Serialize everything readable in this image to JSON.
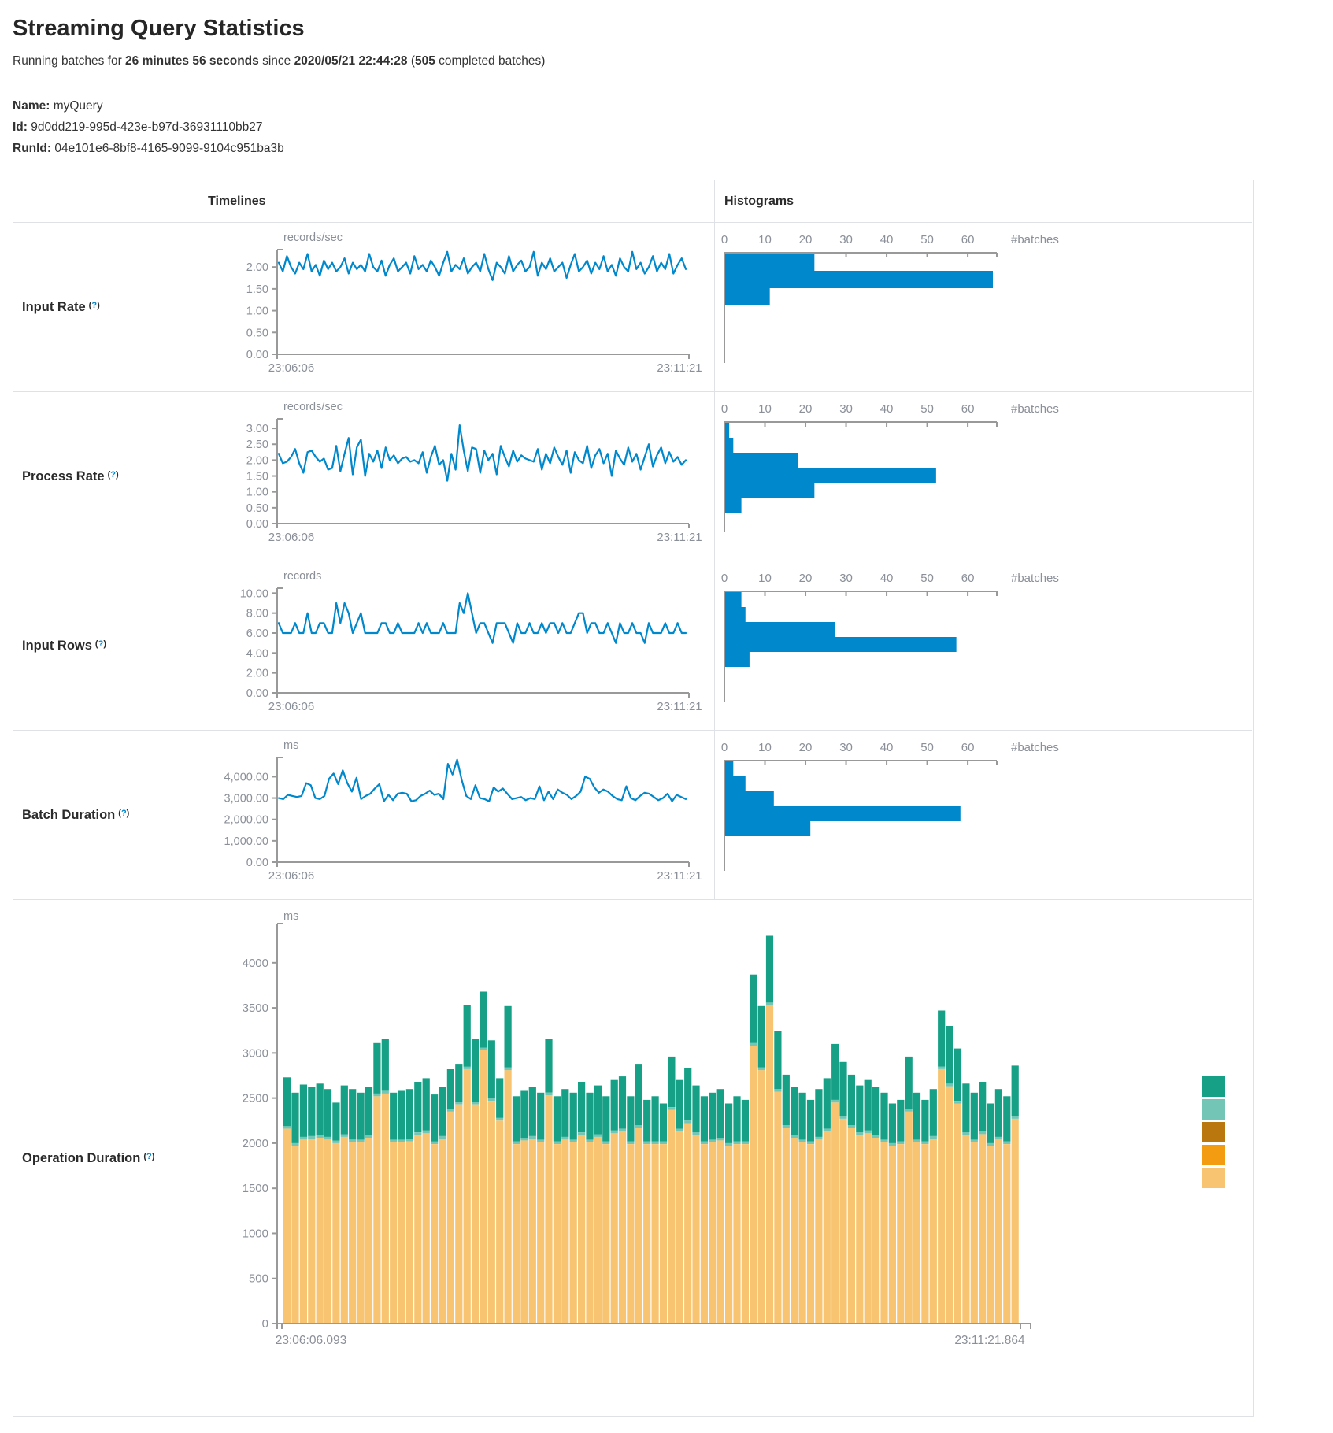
{
  "page": {
    "title": "Streaming Query Statistics",
    "subtitle_prefix": "Running batches for ",
    "duration": "26 minutes 56 seconds",
    "since_word": " since ",
    "start_time": "2020/05/21 22:44:28",
    "batches_open": " (",
    "completed_batches": "505",
    "batches_suffix": " completed batches)",
    "name_label": "Name:",
    "name_value": "myQuery",
    "id_label": "Id:",
    "id_value": "9d0dd219-995d-423e-b97d-36931110bb27",
    "runid_label": "RunId:",
    "runid_value": "04e101e6-8bf8-4165-9099-9104c951ba3b"
  },
  "misc": {
    "paren_open": "(",
    "help_q": "?",
    "paren_close": ")"
  },
  "table": {
    "col_timelines": "Timelines",
    "col_histograms": "Histograms"
  },
  "colors": {
    "blue": "#0088cc",
    "axis": "#999999",
    "chart_text": "#8a8f98",
    "border": "#dee2e6",
    "teal": "#16a085",
    "light_teal": "#73c6b6",
    "bronze": "#b9770e",
    "orange": "#f39c12",
    "tan": "#f8c471"
  },
  "chart_data": {
    "rows": [
      {
        "label": "Input Rate",
        "timeline": {
          "type": "line",
          "unit": "records/sec",
          "ymax": 2.4,
          "y_ticks": [
            {
              "v": 2,
              "label": "2.00"
            },
            {
              "v": 1.5,
              "label": "1.50"
            },
            {
              "v": 1,
              "label": "1.00"
            },
            {
              "v": 0.5,
              "label": "0.50"
            },
            {
              "v": 0,
              "label": "0.00"
            }
          ],
          "x_start": "23:06:06",
          "x_end": "23:11:21",
          "values": [
            2.1,
            1.9,
            2.25,
            2.0,
            1.85,
            2.1,
            1.95,
            2.3,
            1.9,
            2.05,
            1.8,
            2.15,
            1.95,
            2.1,
            1.9,
            2.0,
            2.2,
            1.85,
            2.1,
            1.95,
            2.05,
            1.9,
            2.3,
            2.0,
            1.9,
            2.15,
            1.8,
            2.05,
            2.2,
            1.9,
            2.0,
            2.1,
            1.85,
            2.25,
            1.95,
            2.05,
            1.9,
            2.15,
            2.0,
            1.8,
            2.1,
            2.35,
            1.9,
            2.05,
            1.95,
            2.2,
            1.85,
            2.0,
            2.1,
            1.9,
            2.3,
            1.95,
            1.7,
            2.1,
            2.0,
            1.85,
            2.25,
            1.9,
            2.05,
            2.15,
            1.9,
            2.0,
            2.35,
            1.8,
            2.1,
            1.95,
            2.2,
            1.9,
            2.0,
            2.1,
            1.75,
            2.05,
            2.3,
            1.9,
            2.0,
            2.15,
            1.85,
            2.1,
            1.95,
            2.25,
            1.9,
            2.05,
            1.8,
            2.2,
            2.0,
            1.9,
            2.35,
            1.95,
            2.1,
            1.85,
            2.0,
            2.25,
            1.9,
            2.1,
            1.95,
            2.3,
            1.85,
            2.05,
            2.2,
            1.95
          ]
        },
        "histogram": {
          "type": "bar",
          "axis_ticks": [
            0,
            10,
            20,
            30,
            40,
            50,
            60
          ],
          "max": 66,
          "axis_label": "#batches",
          "values": [
            22,
            66,
            11
          ]
        }
      },
      {
        "label": "Process Rate",
        "timeline": {
          "type": "line",
          "unit": "records/sec",
          "ymax": 3.3,
          "y_ticks": [
            {
              "v": 3,
              "label": "3.00"
            },
            {
              "v": 2.5,
              "label": "2.50"
            },
            {
              "v": 2,
              "label": "2.00"
            },
            {
              "v": 1.5,
              "label": "1.50"
            },
            {
              "v": 1,
              "label": "1.00"
            },
            {
              "v": 0.5,
              "label": "0.50"
            },
            {
              "v": 0,
              "label": "0.00"
            }
          ],
          "x_start": "23:06:06",
          "x_end": "23:11:21",
          "values": [
            2.2,
            1.9,
            1.95,
            2.1,
            2.35,
            1.9,
            1.6,
            2.25,
            2.3,
            2.1,
            1.95,
            2.05,
            1.7,
            1.75,
            2.45,
            1.65,
            2.2,
            2.7,
            1.55,
            2.4,
            2.65,
            1.5,
            2.2,
            1.95,
            2.3,
            1.75,
            2.4,
            2.0,
            2.15,
            1.9,
            2.05,
            2.1,
            1.95,
            2.0,
            1.9,
            2.25,
            1.6,
            2.1,
            2.45,
            1.85,
            2.0,
            1.35,
            2.2,
            1.7,
            3.1,
            2.3,
            1.65,
            2.4,
            2.35,
            1.6,
            2.3,
            2.0,
            2.2,
            1.55,
            2.45,
            2.1,
            1.8,
            2.3,
            1.95,
            2.15,
            2.05,
            2.0,
            1.95,
            2.35,
            1.7,
            2.2,
            1.9,
            2.4,
            2.1,
            1.85,
            2.3,
            1.6,
            2.25,
            2.0,
            1.9,
            2.45,
            1.75,
            2.15,
            2.35,
            1.9,
            2.2,
            1.5,
            2.3,
            2.05,
            1.85,
            2.4,
            1.95,
            2.2,
            1.7,
            2.1,
            2.5,
            1.8,
            2.15,
            2.4,
            1.9,
            2.25,
            1.95,
            2.1,
            1.85,
            2.0
          ]
        },
        "histogram": {
          "type": "bar",
          "axis_ticks": [
            0,
            10,
            20,
            30,
            40,
            50,
            60
          ],
          "max": 66,
          "axis_label": "#batches",
          "values": [
            1,
            2,
            18,
            52,
            22,
            4
          ]
        }
      },
      {
        "label": "Input Rows",
        "timeline": {
          "type": "line",
          "unit": "records",
          "ymax": 10.5,
          "y_ticks": [
            {
              "v": 10,
              "label": "10.00"
            },
            {
              "v": 8,
              "label": "8.00"
            },
            {
              "v": 6,
              "label": "6.00"
            },
            {
              "v": 4,
              "label": "4.00"
            },
            {
              "v": 2,
              "label": "2.00"
            },
            {
              "v": 0,
              "label": "0.00"
            }
          ],
          "x_start": "23:06:06",
          "x_end": "23:11:21",
          "values": [
            7,
            6,
            6,
            6,
            7,
            6,
            6,
            8,
            6,
            6,
            7,
            7,
            6,
            6,
            9,
            7,
            9,
            8,
            6,
            7,
            8,
            6,
            6,
            6,
            6,
            7,
            7,
            6,
            6,
            7,
            6,
            6,
            6,
            6,
            7,
            6,
            7,
            6,
            6,
            6,
            7,
            6,
            6,
            6,
            9,
            8,
            10,
            8,
            6,
            7,
            7,
            6,
            5,
            7,
            7,
            7,
            6,
            5,
            7,
            6,
            6,
            7,
            6,
            6,
            7,
            6,
            7,
            7,
            6,
            7,
            6,
            6,
            7,
            8,
            8,
            6,
            7,
            7,
            6,
            6,
            7,
            6,
            5,
            7,
            6,
            6,
            7,
            6,
            6,
            5,
            7,
            6,
            6,
            6,
            7,
            6,
            6,
            7,
            6,
            6
          ]
        },
        "histogram": {
          "type": "bar",
          "axis_ticks": [
            0,
            10,
            20,
            30,
            40,
            50,
            60
          ],
          "max": 66,
          "axis_label": "#batches",
          "values": [
            4,
            5,
            27,
            57,
            6
          ]
        }
      },
      {
        "label": "Batch Duration",
        "timeline": {
          "type": "line",
          "unit": "ms",
          "ymax": 4900,
          "y_ticks": [
            {
              "v": 4000,
              "label": "4,000.00"
            },
            {
              "v": 3000,
              "label": "3,000.00"
            },
            {
              "v": 2000,
              "label": "2,000.00"
            },
            {
              "v": 1000,
              "label": "1,000.00"
            },
            {
              "v": 0,
              "label": "0.00"
            }
          ],
          "x_start": "23:06:06",
          "x_end": "23:11:21",
          "values": [
            3000,
            2950,
            3150,
            3100,
            3050,
            3100,
            3700,
            3600,
            3000,
            2950,
            3100,
            3900,
            4150,
            3650,
            4300,
            3700,
            3300,
            3950,
            2950,
            3100,
            3200,
            3450,
            3650,
            2850,
            3150,
            2900,
            3200,
            3250,
            3200,
            2850,
            2900,
            3100,
            3200,
            3350,
            3150,
            3200,
            2950,
            4600,
            4100,
            4800,
            3850,
            3100,
            2950,
            3600,
            3000,
            2950,
            2850,
            3500,
            3300,
            3450,
            3200,
            2950,
            3000,
            3050,
            2900,
            3000,
            2950,
            3550,
            2900,
            3300,
            2950,
            3400,
            3250,
            3150,
            2950,
            3100,
            3300,
            4000,
            3900,
            3500,
            3250,
            3400,
            3300,
            3100,
            2950,
            2900,
            3550,
            3000,
            2900,
            3100,
            3250,
            3200,
            3050,
            2900,
            3000,
            3200,
            2850,
            3150,
            3050,
            2950
          ]
        },
        "histogram": {
          "type": "bar",
          "axis_ticks": [
            0,
            10,
            20,
            30,
            40,
            50,
            60
          ],
          "max": 66,
          "axis_label": "#batches",
          "values": [
            2,
            5,
            12,
            58,
            21
          ]
        }
      },
      {
        "label": "Operation Duration",
        "stacked": {
          "type": "stacked-bar",
          "unit": "ms",
          "ymax": 4400,
          "y_ticks": [
            {
              "v": 4000,
              "label": "4000"
            },
            {
              "v": 3500,
              "label": "3500"
            },
            {
              "v": 3000,
              "label": "3000"
            },
            {
              "v": 2500,
              "label": "2500"
            },
            {
              "v": 2000,
              "label": "2000"
            },
            {
              "v": 1500,
              "label": "1500"
            },
            {
              "v": 1000,
              "label": "1000"
            },
            {
              "v": 500,
              "label": "500"
            },
            {
              "v": 0,
              "label": "0"
            }
          ],
          "x_start": "23:06:06.093",
          "x_end": "23:11:21.864",
          "totals": [
            2730,
            2560,
            2650,
            2620,
            2660,
            2600,
            2450,
            2640,
            2600,
            2560,
            2620,
            3110,
            3160,
            2560,
            2580,
            2600,
            2680,
            2720,
            2540,
            2620,
            2820,
            2880,
            3530,
            3160,
            3680,
            3140,
            2720,
            3520,
            2520,
            2580,
            2620,
            2560,
            3160,
            2520,
            2600,
            2560,
            2680,
            2560,
            2640,
            2520,
            2700,
            2740,
            2520,
            2880,
            2480,
            2520,
            2440,
            2960,
            2700,
            2830,
            2640,
            2520,
            2560,
            2600,
            2440,
            2520,
            2480,
            3870,
            3520,
            4300,
            3240,
            2760,
            2620,
            2560,
            2480,
            2600,
            2720,
            3100,
            2900,
            2760,
            2640,
            2700,
            2620,
            2560,
            2440,
            2480,
            2960,
            2560,
            2480,
            2600,
            3470,
            3300,
            3050,
            2660,
            2560,
            2680,
            2440,
            2600,
            2520,
            2860
          ],
          "green": [
            540,
            560,
            580,
            540,
            570,
            530,
            420,
            540,
            560,
            520,
            530,
            560,
            580,
            520,
            540,
            550,
            560,
            580,
            520,
            540,
            440,
            420,
            680,
            700,
            620,
            640,
            440,
            680,
            500,
            520,
            540,
            520,
            600,
            500,
            530,
            520,
            560,
            520,
            540,
            500,
            560,
            580,
            500,
            680,
            460,
            500,
            420,
            560,
            540,
            580,
            520,
            500,
            520,
            540,
            440,
            500,
            460,
            760,
            680,
            740,
            640,
            560,
            530,
            520,
            460,
            530,
            560,
            620,
            600,
            560,
            520,
            560,
            530,
            520,
            440,
            460,
            580,
            520,
            460,
            520,
            620,
            640,
            580,
            540,
            520,
            550,
            440,
            530,
            500,
            560
          ],
          "sliver": 30,
          "legend_colors": [
            "#16a085",
            "#73c6b6",
            "#b9770e",
            "#f39c12",
            "#f8c471"
          ]
        }
      }
    ]
  }
}
